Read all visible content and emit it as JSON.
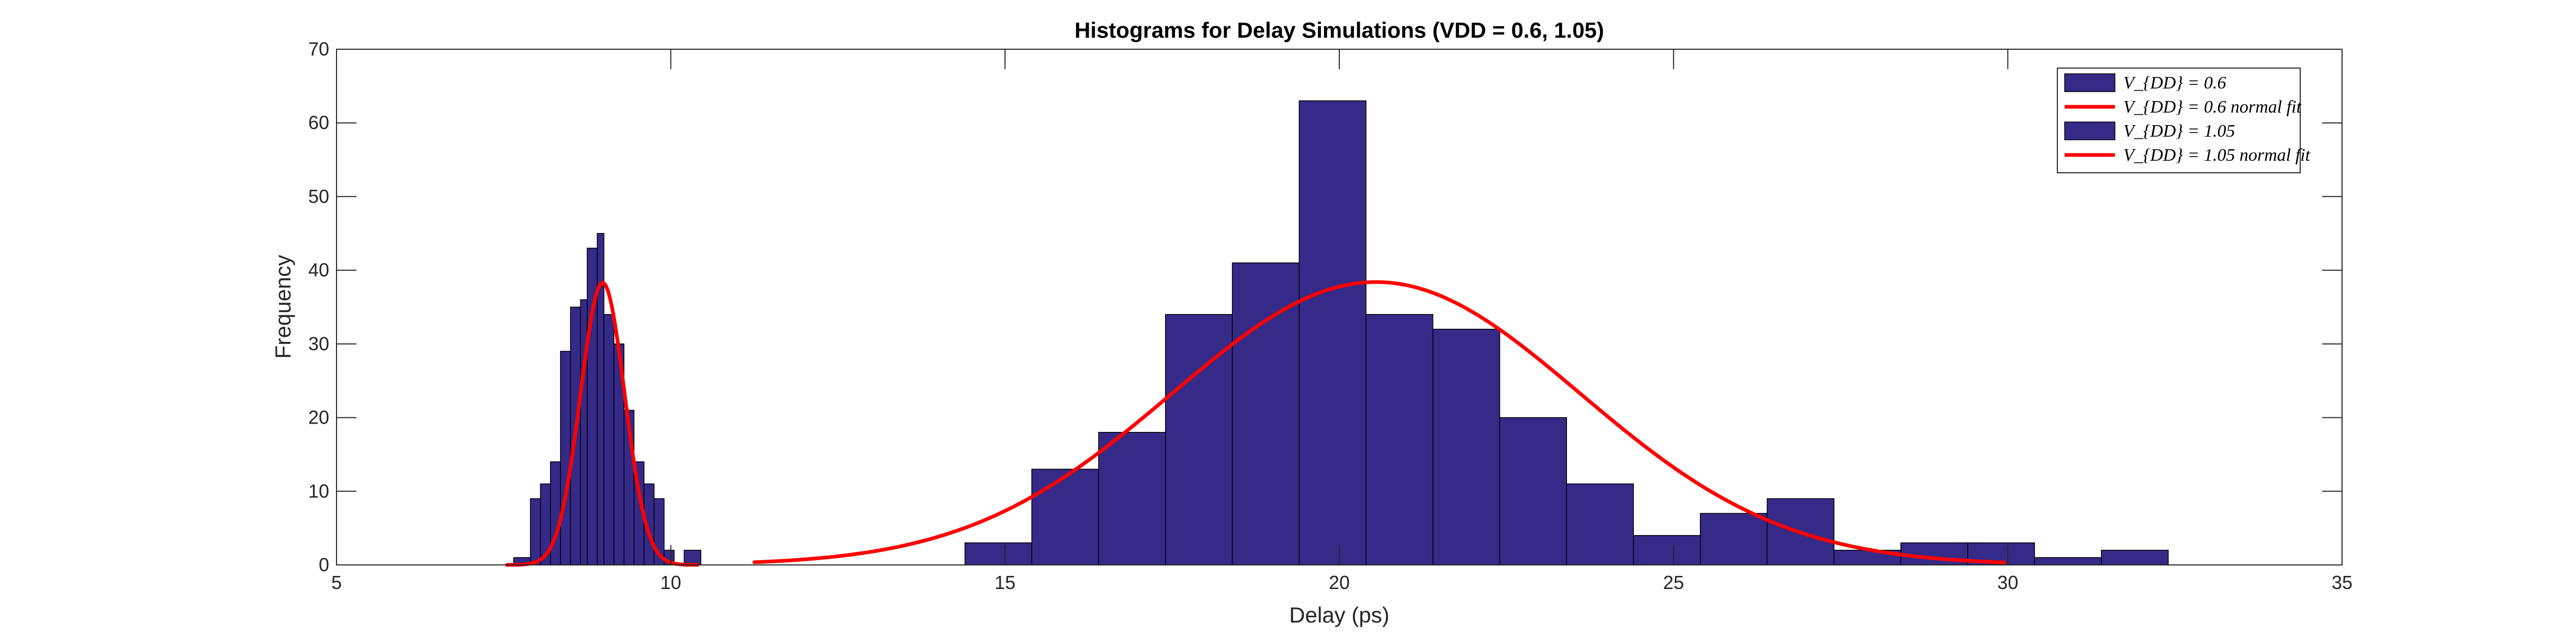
{
  "chart_data": {
    "type": "bar",
    "title": "Histograms for Delay Simulations (VDD = 0.6, 1.05)",
    "xlabel": "Delay (ps)",
    "ylabel": "Frequency",
    "xlim": [
      5,
      35
    ],
    "ylim": [
      0,
      70
    ],
    "xticks": [
      5,
      10,
      15,
      20,
      25,
      30,
      35
    ],
    "yticks": [
      0,
      10,
      20,
      30,
      40,
      50,
      60,
      70
    ],
    "grid": false,
    "legend_position": "top-right",
    "colors": {
      "bar_fill": "#352a87",
      "bar_edge": "#000000",
      "fit_line": "#ff0000"
    },
    "histograms": [
      {
        "name": "V_{DD} = 1.05",
        "bin_edges": [
          7.65,
          7.9,
          8.05,
          8.2,
          8.35,
          8.5,
          8.65,
          8.75,
          8.9,
          9.0,
          9.15,
          9.3,
          9.45,
          9.6,
          9.75,
          9.9,
          10.05,
          10.2,
          10.45
        ],
        "counts": [
          1,
          9,
          11,
          14,
          29,
          35,
          36,
          43,
          45,
          34,
          30,
          21,
          14,
          11,
          9,
          2,
          0,
          2
        ]
      },
      {
        "name": "V_{DD} = 0.6",
        "bin_edges": [
          14.4,
          15.4,
          16.4,
          17.4,
          18.4,
          19.4,
          20.4,
          21.4,
          22.4,
          23.4,
          24.4,
          25.4,
          26.4,
          27.4,
          28.4,
          29.4,
          30.4,
          31.4,
          32.4
        ],
        "counts": [
          3,
          13,
          18,
          34,
          41,
          63,
          34,
          32,
          20,
          11,
          4,
          7,
          9,
          2,
          3,
          3,
          1,
          2
        ]
      }
    ],
    "fits": [
      {
        "name": "V_{DD} = 1.05 normal fit",
        "mean": 8.98,
        "sd": 0.33,
        "peak": 38.3,
        "x_range": [
          7.55,
          10.4
        ]
      },
      {
        "name": "V_{DD} = 0.6 normal fit",
        "mean": 20.55,
        "sd": 3.05,
        "peak": 38.4,
        "x_range": [
          11.25,
          29.95
        ]
      }
    ],
    "legend": [
      {
        "kind": "bar",
        "label": "V_{DD} = 0.6"
      },
      {
        "kind": "line",
        "label": "V_{DD} = 0.6 normal fit"
      },
      {
        "kind": "bar",
        "label": "V_{DD} = 1.05"
      },
      {
        "kind": "line",
        "label": "V_{DD} = 1.05 normal fit"
      }
    ]
  }
}
